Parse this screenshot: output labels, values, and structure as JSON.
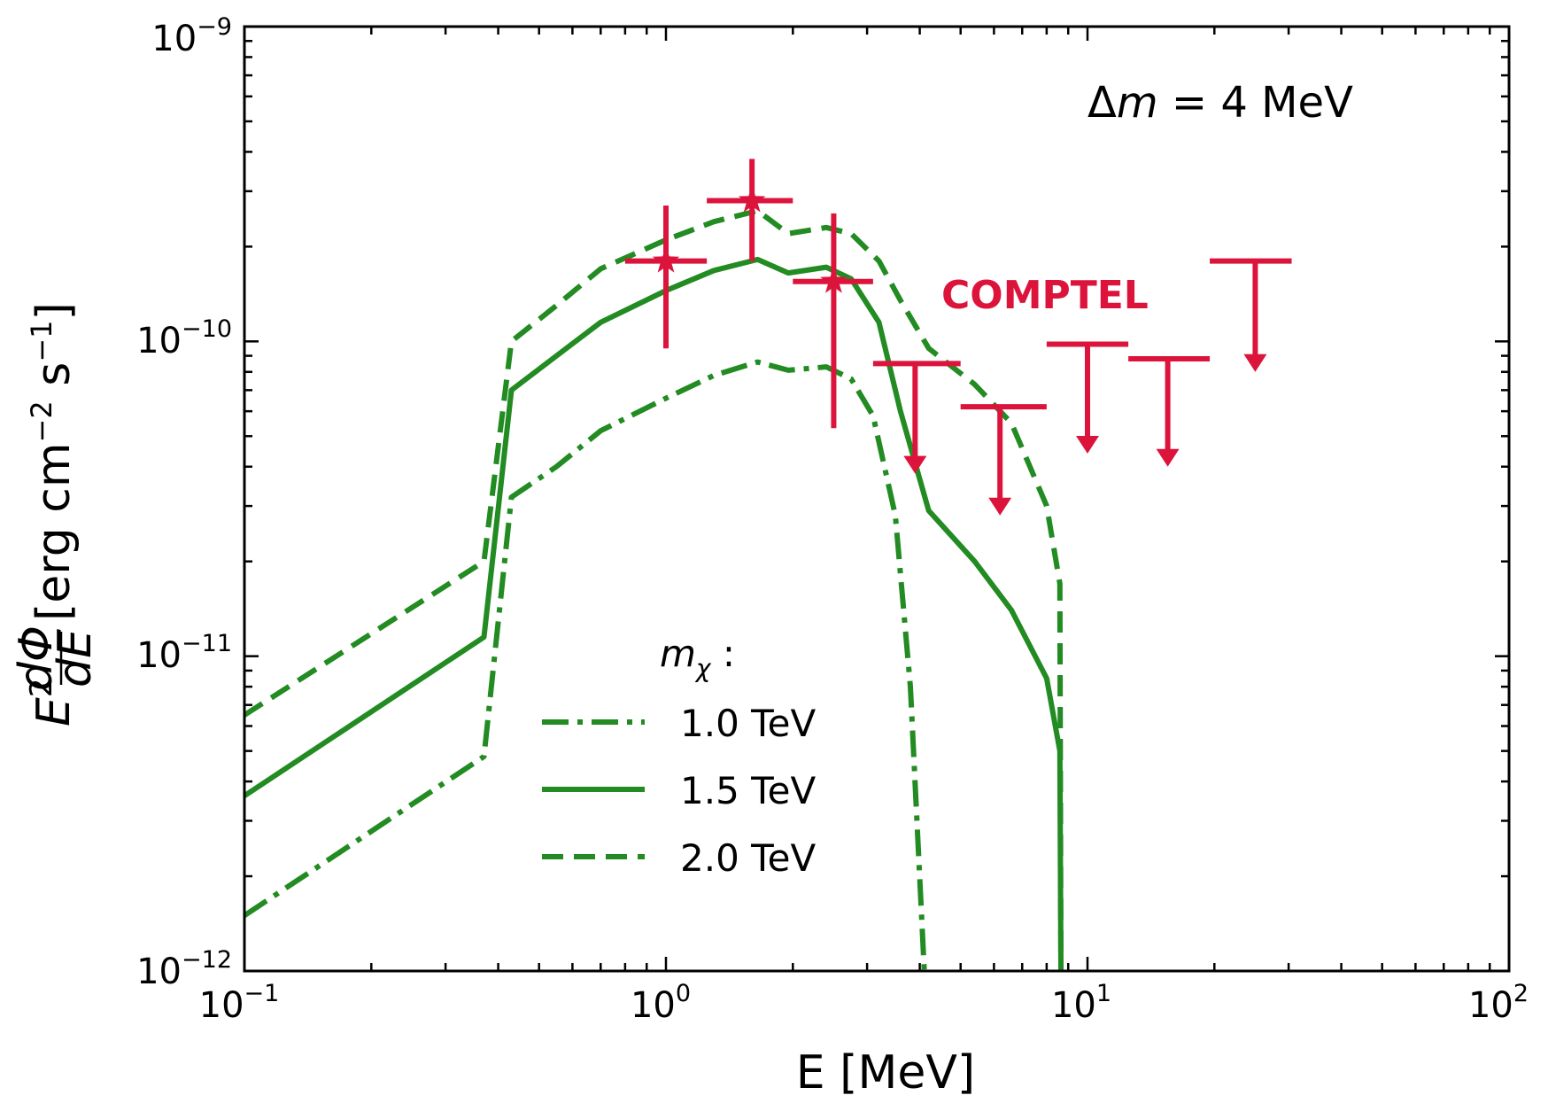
{
  "colors": {
    "model": "#228b22",
    "data": "#dc143c",
    "axis": "#000000"
  },
  "chart_data": {
    "type": "line",
    "xscale": "log",
    "yscale": "log",
    "xlim": [
      0.1,
      100
    ],
    "ylim": [
      1e-12,
      1e-09
    ],
    "xlabel": "E [MeV]",
    "ylabel": {
      "prefix": "E",
      "sup": "2",
      "frac_num": "dΦ",
      "frac_den": "dE",
      "units": "[erg cm",
      "units_sup1": "−2",
      "units_mid": " s",
      "units_sup2": "−1",
      "units_end": "]"
    },
    "xticks": [
      {
        "base": "10",
        "exp": "−1",
        "v": 0.1
      },
      {
        "base": "10",
        "exp": "0",
        "v": 1
      },
      {
        "base": "10",
        "exp": "1",
        "v": 10
      },
      {
        "base": "10",
        "exp": "2",
        "v": 100
      }
    ],
    "yticks": [
      {
        "base": "10",
        "exp": "−12",
        "v": 1e-12
      },
      {
        "base": "10",
        "exp": "−11",
        "v": 1e-11
      },
      {
        "base": "10",
        "exp": "−10",
        "v": 1e-10
      },
      {
        "base": "10",
        "exp": "−9",
        "v": 1e-09
      }
    ],
    "annotation": {
      "delta": "Δ",
      "m": "m",
      "rest": " = 4 MeV"
    },
    "legend": {
      "title_m": "m",
      "title_sub": "χ",
      "title_colon": " :",
      "placement": "lower-left"
    },
    "series": [
      {
        "name": "1.0 TeV",
        "style": "dashdot",
        "points": [
          [
            0.1,
            1.5e-12
          ],
          [
            0.37,
            4.8e-12
          ],
          [
            0.43,
            3.2e-11
          ],
          [
            0.55,
            4e-11
          ],
          [
            0.7,
            5.2e-11
          ],
          [
            1.0,
            6.6e-11
          ],
          [
            1.3,
            7.8e-11
          ],
          [
            1.65,
            8.6e-11
          ],
          [
            1.95,
            8.1e-11
          ],
          [
            2.4,
            8.3e-11
          ],
          [
            2.75,
            7.6e-11
          ],
          [
            3.1,
            5.8e-11
          ],
          [
            3.5,
            2.8e-11
          ],
          [
            3.8,
            8e-12
          ],
          [
            4.1,
            1e-12
          ]
        ]
      },
      {
        "name": "1.5 TeV",
        "style": "solid",
        "points": [
          [
            0.1,
            3.6e-12
          ],
          [
            0.37,
            1.15e-11
          ],
          [
            0.43,
            7e-11
          ],
          [
            0.55,
            9e-11
          ],
          [
            0.7,
            1.15e-10
          ],
          [
            1.0,
            1.45e-10
          ],
          [
            1.3,
            1.68e-10
          ],
          [
            1.65,
            1.82e-10
          ],
          [
            1.95,
            1.65e-10
          ],
          [
            2.4,
            1.72e-10
          ],
          [
            2.75,
            1.58e-10
          ],
          [
            3.2,
            1.15e-10
          ],
          [
            3.6,
            6e-11
          ],
          [
            4.2,
            2.9e-11
          ],
          [
            5.4,
            2e-11
          ],
          [
            6.6,
            1.4e-11
          ],
          [
            8.0,
            8.5e-12
          ],
          [
            8.6,
            5e-12
          ],
          [
            8.65,
            1e-12
          ]
        ]
      },
      {
        "name": "2.0 TeV",
        "style": "dashed",
        "points": [
          [
            0.1,
            6.5e-12
          ],
          [
            0.37,
            2e-11
          ],
          [
            0.43,
            1e-10
          ],
          [
            0.55,
            1.3e-10
          ],
          [
            0.7,
            1.7e-10
          ],
          [
            1.0,
            2.1e-10
          ],
          [
            1.3,
            2.4e-10
          ],
          [
            1.65,
            2.6e-10
          ],
          [
            1.95,
            2.2e-10
          ],
          [
            2.4,
            2.3e-10
          ],
          [
            2.75,
            2.2e-10
          ],
          [
            3.2,
            1.8e-10
          ],
          [
            3.6,
            1.35e-10
          ],
          [
            4.2,
            9.5e-11
          ],
          [
            5.4,
            7.3e-11
          ],
          [
            6.6,
            5.5e-11
          ],
          [
            8.0,
            3e-11
          ],
          [
            8.6,
            1.7e-11
          ],
          [
            8.65,
            1e-12
          ]
        ]
      }
    ],
    "comptel": {
      "label": "COMPTEL",
      "points": [
        {
          "x": 1.0,
          "y": 1.8e-10,
          "xlo": 0.8,
          "xhi": 1.25,
          "ylo": 9.5e-11,
          "yhi": 2.7e-10
        },
        {
          "x": 1.6,
          "y": 2.8e-10,
          "xlo": 1.25,
          "xhi": 2.0,
          "ylo": 1.8e-10,
          "yhi": 3.8e-10
        },
        {
          "x": 2.5,
          "y": 1.55e-10,
          "xlo": 2.0,
          "xhi": 3.1,
          "ylo": 5.3e-11,
          "yhi": 2.55e-10
        }
      ],
      "upper_limits": [
        {
          "x": 3.9,
          "y": 8.5e-11,
          "xlo": 3.1,
          "xhi": 5.0,
          "yarrow": 3.8e-11
        },
        {
          "x": 6.2,
          "y": 6.2e-11,
          "xlo": 5.0,
          "xhi": 8.0,
          "yarrow": 2.8e-11
        },
        {
          "x": 10.0,
          "y": 9.8e-11,
          "xlo": 8.0,
          "xhi": 12.5,
          "yarrow": 4.4e-11
        },
        {
          "x": 15.5,
          "y": 8.8e-11,
          "xlo": 12.5,
          "xhi": 19.5,
          "yarrow": 4e-11
        },
        {
          "x": 25.0,
          "y": 1.8e-10,
          "xlo": 19.5,
          "xhi": 30.5,
          "yarrow": 8e-11
        }
      ]
    }
  }
}
